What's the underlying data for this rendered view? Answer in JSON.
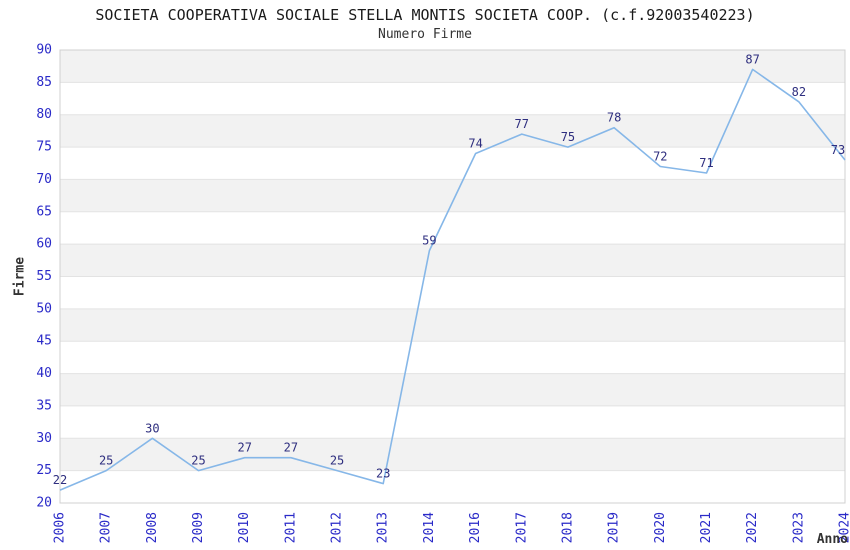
{
  "chart_data": {
    "type": "line",
    "title": "SOCIETA COOPERATIVA SOCIALE STELLA MONTIS SOCIETA COOP. (c.f.92003540223)",
    "subtitle": "Numero Firme",
    "xlabel": "Anno",
    "ylabel": "Firme",
    "categories": [
      "2006",
      "2007",
      "2008",
      "2009",
      "2010",
      "2011",
      "2012",
      "2013",
      "2014",
      "2016",
      "2017",
      "2018",
      "2019",
      "2020",
      "2021",
      "2022",
      "2023",
      "2024"
    ],
    "values": [
      22,
      25,
      30,
      25,
      27,
      27,
      25,
      23,
      59,
      74,
      77,
      75,
      78,
      72,
      71,
      87,
      82,
      73
    ],
    "ylim": [
      20,
      90
    ],
    "ytick_step": 5,
    "grid": "horizontal-gridlines-with-alternating-bands",
    "legend": "none",
    "markers": "none",
    "colors": {
      "line": "#86b7e8",
      "tick_label": "#2a2ac8",
      "data_label": "#2e2e7f",
      "axis_title": "#333333",
      "band_fill": "#f2f2f2",
      "gridline": "#e3e3e3",
      "plot_border": "#d0d0d0",
      "title": "#1a1a1a",
      "subtitle": "#333333"
    }
  }
}
